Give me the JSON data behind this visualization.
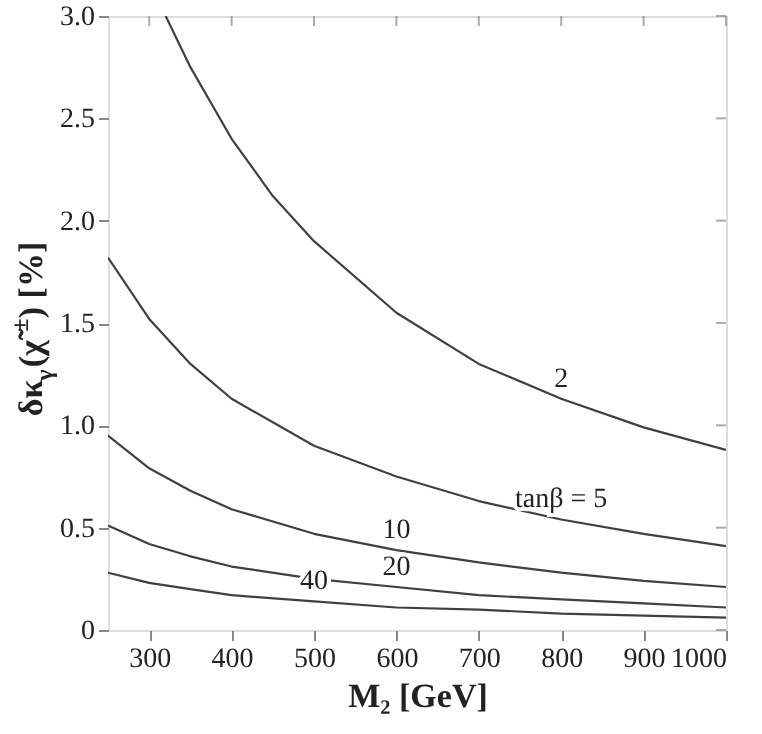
{
  "chart_data": {
    "type": "line",
    "xlabel": "M₂ [GeV]",
    "ylabel": "δκ$_{γ}$(χ̃$^{±}$) [%]",
    "xlim": [
      250,
      1000
    ],
    "xticks": [
      300,
      400,
      500,
      600,
      700,
      800,
      900,
      1000
    ],
    "ylim": [
      0,
      3
    ],
    "yticks": [
      0,
      0.5,
      {
        "value": 1,
        "label": "1.0"
      },
      1.5,
      {
        "value": 2,
        "label": "2.0"
      },
      2.5,
      {
        "value": 3,
        "label": "3.0"
      }
    ],
    "grid": false,
    "marker": "none",
    "line_style": "solid",
    "series": [
      {
        "name": "2",
        "color": "#404040",
        "x": [
          320,
          350,
          400,
          450,
          500,
          600,
          700,
          800,
          900,
          1000
        ],
        "values": [
          3.0,
          2.75,
          2.4,
          2.12,
          1.9,
          1.55,
          1.3,
          1.13,
          0.99,
          0.88
        ]
      },
      {
        "name": "tanβ = 5",
        "color": "#404040",
        "x": [
          250,
          300,
          350,
          400,
          500,
          600,
          700,
          800,
          900,
          1000
        ],
        "values": [
          1.82,
          1.52,
          1.3,
          1.13,
          0.9,
          0.75,
          0.63,
          0.54,
          0.47,
          0.41
        ]
      },
      {
        "name": "10",
        "color": "#404040",
        "x": [
          250,
          300,
          350,
          400,
          500,
          600,
          700,
          800,
          900,
          1000
        ],
        "values": [
          0.95,
          0.79,
          0.68,
          0.59,
          0.47,
          0.39,
          0.33,
          0.28,
          0.24,
          0.21
        ]
      },
      {
        "name": "20",
        "color": "#404040",
        "x": [
          250,
          300,
          350,
          400,
          500,
          600,
          700,
          800,
          900,
          1000
        ],
        "values": [
          0.51,
          0.42,
          0.36,
          0.31,
          0.25,
          0.21,
          0.17,
          0.15,
          0.13,
          0.11
        ]
      },
      {
        "name": "40",
        "color": "#404040",
        "x": [
          250,
          300,
          350,
          400,
          500,
          600,
          700,
          800,
          900,
          1000
        ],
        "values": [
          0.28,
          0.23,
          0.2,
          0.17,
          0.14,
          0.11,
          0.1,
          0.08,
          0.07,
          0.06
        ]
      }
    ]
  }
}
